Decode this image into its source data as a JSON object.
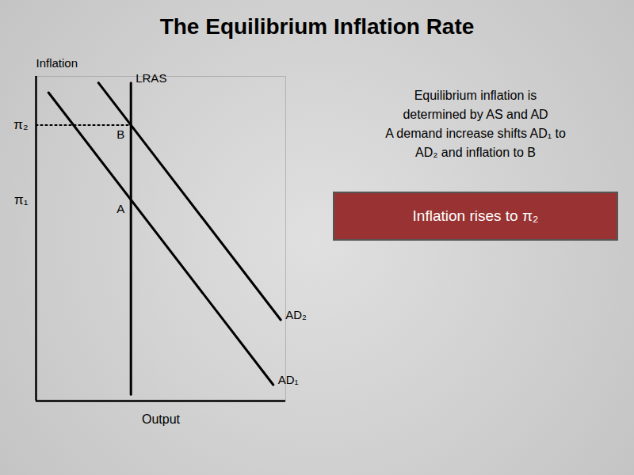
{
  "chart_data": {
    "type": "line",
    "title": "The Equilibrium Inflation Rate",
    "xlabel": "Output",
    "ylabel": "Inflation",
    "xlim": [
      0,
      10
    ],
    "ylim": [
      0,
      10
    ],
    "tick_labels": false,
    "grid": false,
    "series": [
      {
        "name": "LRAS",
        "color": "#000000",
        "x": [
          3.8,
          3.8
        ],
        "values": [
          0.2,
          9.8
        ]
      },
      {
        "name": "AD₁",
        "color": "#000000",
        "x": [
          0.5,
          9.5
        ],
        "values": [
          9.5,
          0.5
        ]
      },
      {
        "name": "AD₂",
        "color": "#000000",
        "x": [
          2.5,
          9.8
        ],
        "values": [
          9.8,
          2.5
        ]
      },
      {
        "color": "#000000",
        "line_style": "dotted",
        "x": [
          0,
          3.8
        ],
        "values": [
          8.5,
          8.5
        ]
      }
    ],
    "annotations": [
      {
        "text": "π₁",
        "y": 6.2
      },
      {
        "text": "π₂",
        "y": 8.5
      },
      {
        "text": "A",
        "x": 3.8,
        "y": 6.2
      },
      {
        "text": "B",
        "x": 3.8,
        "y": 8.5
      },
      {
        "text": "Equilibrium inflation is"
      },
      {
        "text": "determined by AS and AD"
      },
      {
        "text": "A demand increase shifts AD₁ to"
      },
      {
        "text": "AD₂ and inflation to B"
      },
      {
        "text": "Inflation rises to π₂",
        "color": "#993333"
      }
    ]
  }
}
